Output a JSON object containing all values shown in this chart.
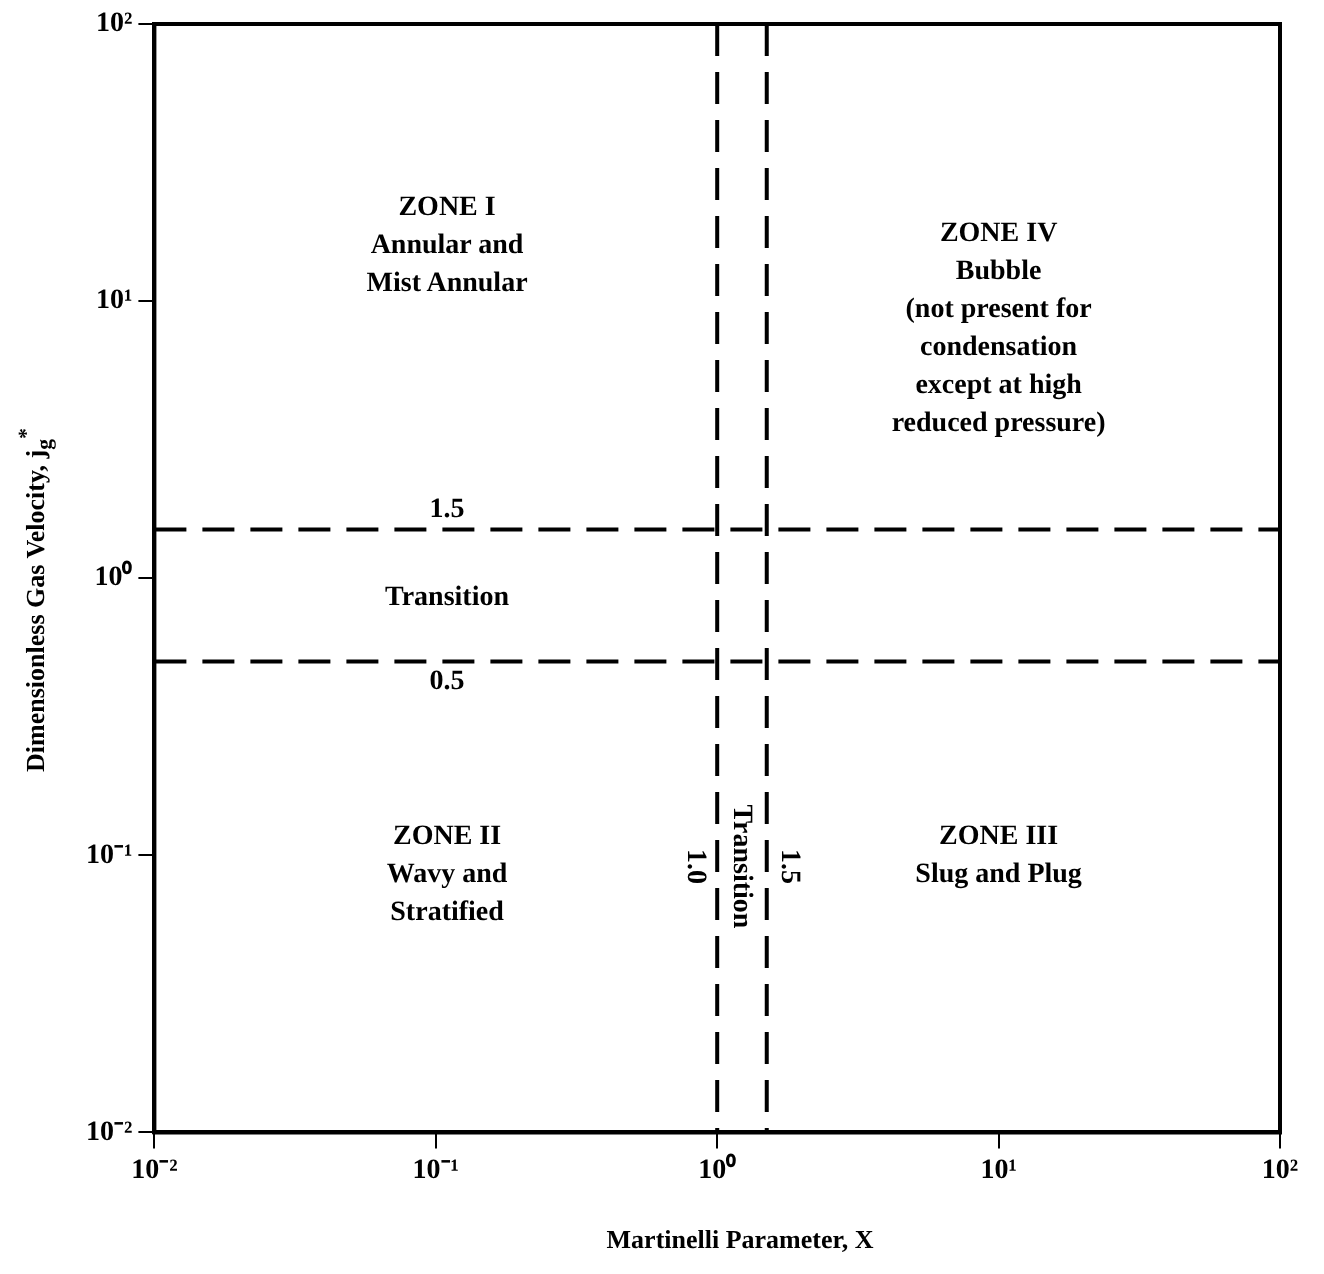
{
  "chart_data": {
    "type": "line",
    "xlabel": "Martinelli Parameter, X",
    "ylabel": "Dimensionless Gas Velocity, j$_{g}$$^{*}$",
    "log": "xy",
    "xlim": [
      0.01,
      100
    ],
    "ylim": [
      0.01,
      100
    ],
    "xticks": [
      {
        "value": 0.01,
        "label": "10⁻²"
      },
      {
        "value": 0.1,
        "label": "10⁻¹"
      },
      {
        "value": 1,
        "label": "10⁰"
      },
      {
        "value": 10,
        "label": "10¹"
      },
      {
        "value": 100,
        "label": "10²"
      }
    ],
    "yticks": [
      {
        "value": 0.01,
        "label": "10⁻²"
      },
      {
        "value": 0.1,
        "label": "10⁻¹"
      },
      {
        "value": 1,
        "label": "10⁰"
      },
      {
        "value": 10,
        "label": "10¹"
      },
      {
        "value": 100,
        "label": "10²"
      }
    ],
    "grid": false,
    "legend": false,
    "ref_lines": [
      {
        "axis": "y",
        "value": 1.5,
        "label": "1.5",
        "color": "#000000",
        "line_style": "dashed"
      },
      {
        "axis": "y",
        "value": 0.5,
        "label": "0.5",
        "color": "#000000",
        "line_style": "dashed"
      },
      {
        "axis": "x",
        "value": 1.0,
        "label": "1.0",
        "color": "#000000",
        "line_style": "dashed"
      },
      {
        "axis": "x",
        "value": 1.5,
        "label": "1.5",
        "color": "#000000",
        "line_style": "dashed"
      }
    ],
    "annotations": [
      "ZONE I\nAnnular and\nMist Annular",
      "ZONE IV\nBubble\n(not present for\ncondensation\nexcept at high\nreduced pressure)",
      "Transition",
      "ZONE II\nWavy and\nStratified",
      "ZONE III\nSlug and Plug",
      "Transition"
    ]
  }
}
